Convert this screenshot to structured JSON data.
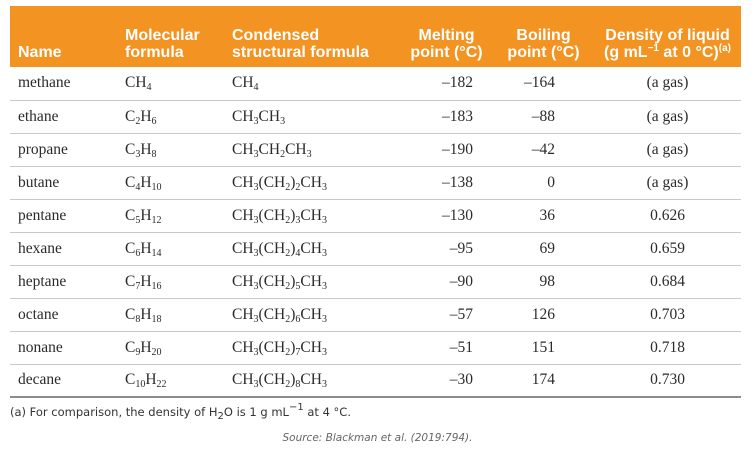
{
  "header": {
    "name": "Name",
    "molecular_l1": "Molecular",
    "molecular_l2": "formula",
    "condensed_l1": "Condensed",
    "condensed_l2": "structural formula",
    "melting_l1": "Melting",
    "melting_l2": "point (°C)",
    "boiling_l1": "Boiling",
    "boiling_l2": "point (°C)",
    "density_l1": "Density of liquid",
    "density_l2a": "(g mL",
    "density_l2b": "−1",
    "density_l2c": " at 0 °C)",
    "density_l2d": "(a)"
  },
  "rows": [
    {
      "name": "methane",
      "mol": [
        [
          "CH",
          ""
        ],
        [
          "4",
          "s"
        ]
      ],
      "cond": [
        [
          "CH",
          ""
        ],
        [
          "4",
          "s"
        ]
      ],
      "melt": "–182",
      "boil": "–164",
      "dens": "(a gas)"
    },
    {
      "name": "ethane",
      "mol": [
        [
          "C",
          ""
        ],
        [
          "2",
          "s"
        ],
        [
          "H",
          ""
        ],
        [
          "6",
          "s"
        ]
      ],
      "cond": [
        [
          "CH",
          ""
        ],
        [
          "3",
          "s"
        ],
        [
          "CH",
          ""
        ],
        [
          "3",
          "s"
        ]
      ],
      "melt": "–183",
      "boil": "–88",
      "dens": "(a gas)"
    },
    {
      "name": "propane",
      "mol": [
        [
          "C",
          ""
        ],
        [
          "3",
          "s"
        ],
        [
          "H",
          ""
        ],
        [
          "8",
          "s"
        ]
      ],
      "cond": [
        [
          "CH",
          ""
        ],
        [
          "3",
          "s"
        ],
        [
          "CH",
          ""
        ],
        [
          "2",
          "s"
        ],
        [
          "CH",
          ""
        ],
        [
          "3",
          "s"
        ]
      ],
      "melt": "–190",
      "boil": "–42",
      "dens": "(a gas)"
    },
    {
      "name": "butane",
      "mol": [
        [
          "C",
          ""
        ],
        [
          "4",
          "s"
        ],
        [
          "H",
          ""
        ],
        [
          "10",
          "s"
        ]
      ],
      "cond": [
        [
          "CH",
          ""
        ],
        [
          "3",
          "s"
        ],
        [
          "(CH",
          ""
        ],
        [
          "2",
          "s"
        ],
        [
          ")",
          ""
        ],
        [
          "2",
          "s"
        ],
        [
          "CH",
          ""
        ],
        [
          "3",
          "s"
        ]
      ],
      "melt": "–138",
      "boil": "0",
      "dens": "(a gas)"
    },
    {
      "name": "pentane",
      "mol": [
        [
          "C",
          ""
        ],
        [
          "5",
          "s"
        ],
        [
          "H",
          ""
        ],
        [
          "12",
          "s"
        ]
      ],
      "cond": [
        [
          "CH",
          ""
        ],
        [
          "3",
          "s"
        ],
        [
          "(CH",
          ""
        ],
        [
          "2",
          "s"
        ],
        [
          ")",
          ""
        ],
        [
          "3",
          "s"
        ],
        [
          "CH",
          ""
        ],
        [
          "3",
          "s"
        ]
      ],
      "melt": "–130",
      "boil": "36",
      "dens": "0.626"
    },
    {
      "name": "hexane",
      "mol": [
        [
          "C",
          ""
        ],
        [
          "6",
          "s"
        ],
        [
          "H",
          ""
        ],
        [
          "14",
          "s"
        ]
      ],
      "cond": [
        [
          "CH",
          ""
        ],
        [
          "3",
          "s"
        ],
        [
          "(CH",
          ""
        ],
        [
          "2",
          "s"
        ],
        [
          ")",
          ""
        ],
        [
          "4",
          "s"
        ],
        [
          "CH",
          ""
        ],
        [
          "3",
          "s"
        ]
      ],
      "melt": "–95",
      "boil": "69",
      "dens": "0.659"
    },
    {
      "name": "heptane",
      "mol": [
        [
          "C",
          ""
        ],
        [
          "7",
          "s"
        ],
        [
          "H",
          ""
        ],
        [
          "16",
          "s"
        ]
      ],
      "cond": [
        [
          "CH",
          ""
        ],
        [
          "3",
          "s"
        ],
        [
          "(CH",
          ""
        ],
        [
          "2",
          "s"
        ],
        [
          ")",
          ""
        ],
        [
          "5",
          "s"
        ],
        [
          "CH",
          ""
        ],
        [
          "3",
          "s"
        ]
      ],
      "melt": "–90",
      "boil": "98",
      "dens": "0.684"
    },
    {
      "name": "octane",
      "mol": [
        [
          "C",
          ""
        ],
        [
          "8",
          "s"
        ],
        [
          "H",
          ""
        ],
        [
          "18",
          "s"
        ]
      ],
      "cond": [
        [
          "CH",
          ""
        ],
        [
          "3",
          "s"
        ],
        [
          "(CH",
          ""
        ],
        [
          "2",
          "s"
        ],
        [
          ")",
          ""
        ],
        [
          "6",
          "s"
        ],
        [
          "CH",
          ""
        ],
        [
          "3",
          "s"
        ]
      ],
      "melt": "–57",
      "boil": "126",
      "dens": "0.703"
    },
    {
      "name": "nonane",
      "mol": [
        [
          "C",
          ""
        ],
        [
          "9",
          "s"
        ],
        [
          "H",
          ""
        ],
        [
          "20",
          "s"
        ]
      ],
      "cond": [
        [
          "CH",
          ""
        ],
        [
          "3",
          "s"
        ],
        [
          "(CH",
          ""
        ],
        [
          "2",
          "s"
        ],
        [
          ")",
          ""
        ],
        [
          "7",
          "s"
        ],
        [
          "CH",
          ""
        ],
        [
          "3",
          "s"
        ]
      ],
      "melt": "–51",
      "boil": "151",
      "dens": "0.718"
    },
    {
      "name": "decane",
      "mol": [
        [
          "C",
          ""
        ],
        [
          "10",
          "s"
        ],
        [
          "H",
          ""
        ],
        [
          "22",
          "s"
        ]
      ],
      "cond": [
        [
          "CH",
          ""
        ],
        [
          "3",
          "s"
        ],
        [
          "(CH",
          ""
        ],
        [
          "2",
          "s"
        ],
        [
          ")",
          ""
        ],
        [
          "8",
          "s"
        ],
        [
          "CH",
          ""
        ],
        [
          "3",
          "s"
        ]
      ],
      "melt": "–30",
      "boil": "174",
      "dens": "0.730"
    }
  ],
  "footnote": {
    "p1": "(a) For comparison, the density of H",
    "p1_sub": "2",
    "p2": "O is 1 g mL",
    "p2_sup": "−1",
    "p3": " at 4 °C."
  },
  "source": "Source: Blackman et al. (2019:794)."
}
